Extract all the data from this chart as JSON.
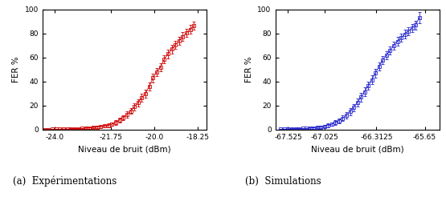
{
  "left_color": "#cc0000",
  "right_color": "#2222cc",
  "left_xlabel": "Niveau de bruit (dBm)",
  "right_xlabel": "Niveau de bruit (dBm)",
  "ylabel": "FER %",
  "left_caption": "(a)  Expérimentations",
  "right_caption": "(b)  Simulations",
  "left_xlim": [
    -24.5,
    -17.9
  ],
  "right_xlim": [
    -67.7,
    -65.45
  ],
  "ylim": [
    0,
    100
  ],
  "left_xticks": [
    -24.0,
    -21.75,
    -20.0,
    -18.25
  ],
  "left_xtick_labels": [
    "-24.0",
    "-21.75",
    "-20.0",
    "-18.25"
  ],
  "right_xticks": [
    -67.525,
    -67.025,
    -66.3125,
    -65.65
  ],
  "right_xtick_labels": [
    "-67.525",
    "-67.025",
    "-66.3125",
    "-65.65"
  ],
  "left_x": [
    -24.4,
    -24.25,
    -24.1,
    -23.95,
    -23.8,
    -23.65,
    -23.5,
    -23.35,
    -23.2,
    -23.05,
    -22.9,
    -22.75,
    -22.6,
    -22.45,
    -22.3,
    -22.15,
    -22.0,
    -21.85,
    -21.7,
    -21.55,
    -21.4,
    -21.25,
    -21.1,
    -20.95,
    -20.8,
    -20.65,
    -20.5,
    -20.35,
    -20.2,
    -20.05,
    -19.9,
    -19.75,
    -19.6,
    -19.45,
    -19.3,
    -19.15,
    -19.0,
    -18.85,
    -18.7,
    -18.55,
    -18.4
  ],
  "left_y": [
    0.2,
    0.2,
    0.3,
    0.3,
    0.4,
    0.5,
    0.5,
    0.6,
    0.7,
    0.8,
    1.0,
    1.2,
    1.4,
    1.8,
    2.2,
    2.5,
    3.0,
    3.5,
    4.5,
    6.0,
    8.0,
    10.0,
    12.5,
    15.5,
    19.0,
    22.5,
    26.5,
    30.0,
    36.0,
    43.0,
    48.0,
    52.0,
    58.5,
    63.0,
    67.0,
    70.5,
    74.0,
    77.5,
    80.5,
    83.5,
    86.5
  ],
  "left_yerr": [
    0.15,
    0.15,
    0.2,
    0.2,
    0.25,
    0.3,
    0.3,
    0.35,
    0.4,
    0.4,
    0.5,
    0.6,
    0.7,
    0.8,
    1.0,
    1.0,
    1.2,
    1.4,
    1.6,
    1.8,
    2.0,
    2.2,
    2.4,
    2.6,
    2.8,
    3.0,
    3.2,
    3.2,
    3.5,
    3.5,
    3.5,
    3.5,
    3.5,
    3.5,
    3.5,
    3.5,
    3.5,
    3.5,
    3.5,
    3.5,
    3.5
  ],
  "right_x": [
    -67.625,
    -67.575,
    -67.525,
    -67.475,
    -67.425,
    -67.375,
    -67.325,
    -67.275,
    -67.225,
    -67.175,
    -67.125,
    -67.075,
    -67.025,
    -66.975,
    -66.925,
    -66.875,
    -66.825,
    -66.775,
    -66.725,
    -66.675,
    -66.625,
    -66.575,
    -66.525,
    -66.475,
    -66.425,
    -66.375,
    -66.325,
    -66.275,
    -66.225,
    -66.175,
    -66.125,
    -66.075,
    -66.025,
    -65.975,
    -65.925,
    -65.875,
    -65.825,
    -65.775,
    -65.725
  ],
  "right_y": [
    0.3,
    0.4,
    0.5,
    0.6,
    0.7,
    0.8,
    0.9,
    1.0,
    1.2,
    1.5,
    1.8,
    2.2,
    2.8,
    3.5,
    4.5,
    6.0,
    7.5,
    9.5,
    12.0,
    15.0,
    18.5,
    22.5,
    27.0,
    31.5,
    36.5,
    41.5,
    47.0,
    52.5,
    58.0,
    62.0,
    66.0,
    70.0,
    73.5,
    76.5,
    79.5,
    82.0,
    84.5,
    87.0,
    93.0
  ],
  "right_yerr": [
    0.2,
    0.2,
    0.3,
    0.3,
    0.35,
    0.4,
    0.4,
    0.5,
    0.6,
    0.7,
    0.8,
    1.0,
    1.2,
    1.4,
    1.6,
    1.8,
    2.0,
    2.2,
    2.5,
    2.8,
    3.0,
    3.2,
    3.5,
    3.5,
    3.5,
    3.5,
    3.5,
    3.5,
    3.5,
    3.5,
    3.5,
    3.5,
    3.5,
    3.5,
    3.5,
    3.5,
    3.5,
    3.5,
    4.5
  ]
}
